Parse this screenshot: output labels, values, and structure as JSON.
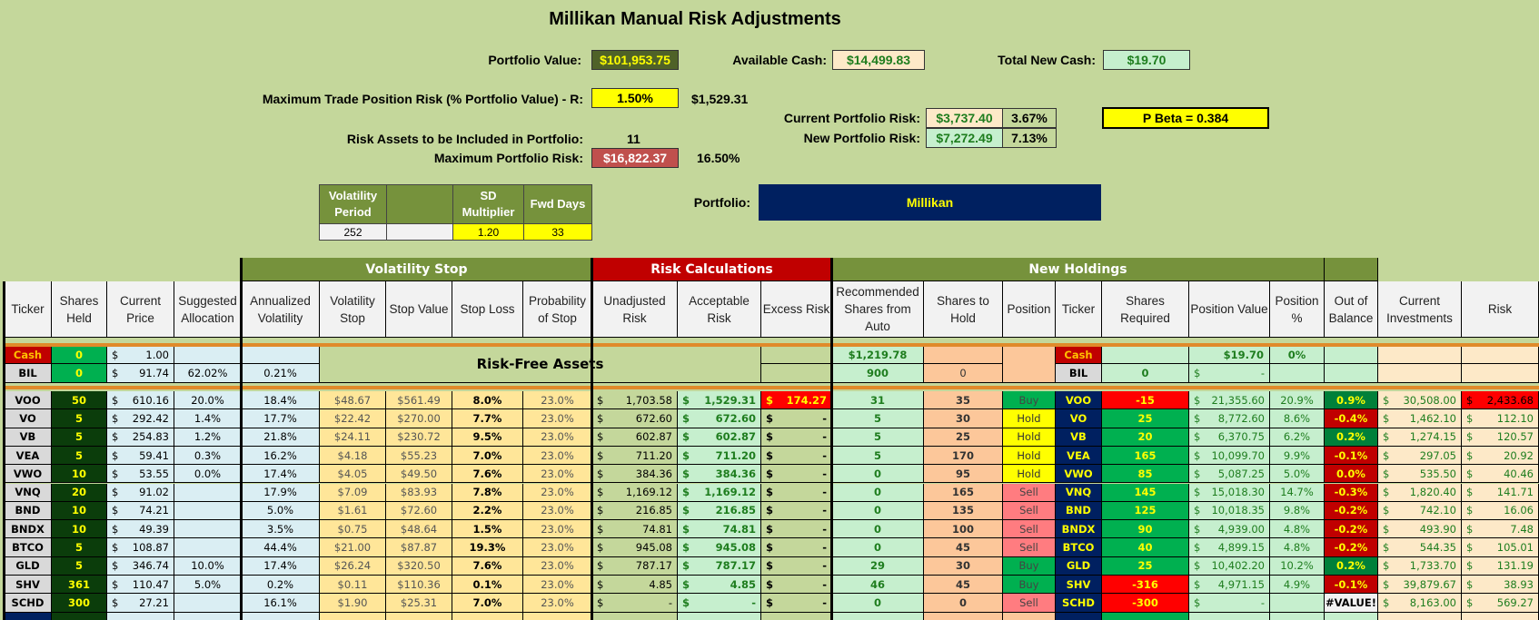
{
  "title": "Millikan Manual Risk Adjustments",
  "summary": {
    "portfolio_value_label": "Portfolio Value:",
    "portfolio_value": "$101,953.75",
    "available_cash_label": "Available Cash:",
    "available_cash": "$14,499.83",
    "total_new_cash_label": "Total New Cash:",
    "total_new_cash": "$19.70",
    "max_trade_risk_label": "Maximum Trade Position Risk (% Portfolio Value) - R:",
    "max_trade_risk_pct": "1.50%",
    "max_trade_risk_amt": "$1,529.31",
    "current_risk_label": "Current Portfolio Risk:",
    "current_risk_amt": "$3,737.40",
    "current_risk_pct": "3.67%",
    "new_risk_label": "New Portfolio Risk:",
    "new_risk_amt": "$7,272.49",
    "new_risk_pct": "7.13%",
    "p_beta": "P Beta = 0.384",
    "risk_assets_label": "Risk Assets to be Included in Portfolio:",
    "risk_assets_count": "11",
    "max_portfolio_risk_label": "Maximum Portfolio Risk:",
    "max_portfolio_risk_amt": "$16,822.37",
    "max_portfolio_risk_pct": "16.50%"
  },
  "settings": {
    "headers": [
      "Volatility Period",
      "",
      "SD Multiplier",
      "Fwd Days"
    ],
    "values": [
      "252",
      "",
      "1.20",
      "33"
    ]
  },
  "portfolio": {
    "label": "Portfolio:",
    "value": "Millikan"
  },
  "bands": {
    "volatility_stop": "Volatility Stop",
    "risk_calculations": "Risk Calculations",
    "new_holdings": "New Holdings"
  },
  "columns": [
    "Ticker",
    "Shares Held",
    "Current Price",
    "Suggested Allocation",
    "Annualized Volatility",
    "Volatility Stop",
    "Stop Value",
    "Stop Loss",
    "Probability of Stop",
    "Unadjusted Risk",
    "Acceptable Risk",
    "Excess Risk",
    "Recommended Shares from Auto",
    "Shares to Hold",
    "Position",
    "Ticker",
    "Shares Required",
    "Position Value",
    "Position %",
    "Out of Balance",
    "Current Investments",
    "Risk"
  ],
  "risk_free_label": "Risk-Free Assets",
  "risk_free_rows": [
    {
      "ticker": "Cash",
      "shares": "0",
      "price": "1.00",
      "alloc": "",
      "vol": "",
      "rec": "$1,219.78",
      "hold": "",
      "ticker2": "Cash",
      "req": "",
      "pos_value": "$19.70",
      "pos_pct": "0%"
    },
    {
      "ticker": "BIL",
      "shares": "0",
      "price": "91.74",
      "alloc": "62.02%",
      "vol": "0.21%",
      "rec": "900",
      "hold": "0",
      "ticker2": "BIL",
      "req": "0",
      "pos_value": "-",
      "pos_pct": ""
    }
  ],
  "rows": [
    {
      "ticker": "VOO",
      "shares": "50",
      "price": "610.16",
      "alloc": "20.0%",
      "vol": "18.4%",
      "vstop": "$48.67",
      "sval": "$561.49",
      "sloss": "8.0%",
      "prob": "23.0%",
      "unadj": "1,703.58",
      "accept": "1,529.31",
      "excess": "174.27",
      "rec": "31",
      "hold": "35",
      "position": "Buy",
      "req": "-15",
      "pos_value": "21,355.60",
      "pos_pct": "20.9%",
      "oob": "0.9%",
      "cur_inv": "30,508.00",
      "risk": "2,433.68"
    },
    {
      "ticker": "VO",
      "shares": "5",
      "price": "292.42",
      "alloc": "1.4%",
      "vol": "17.7%",
      "vstop": "$22.42",
      "sval": "$270.00",
      "sloss": "7.7%",
      "prob": "23.0%",
      "unadj": "672.60",
      "accept": "672.60",
      "excess": "-",
      "rec": "5",
      "hold": "30",
      "position": "Hold",
      "req": "25",
      "pos_value": "8,772.60",
      "pos_pct": "8.6%",
      "oob": "-0.4%",
      "cur_inv": "1,462.10",
      "risk": "112.10"
    },
    {
      "ticker": "VB",
      "shares": "5",
      "price": "254.83",
      "alloc": "1.2%",
      "vol": "21.8%",
      "vstop": "$24.11",
      "sval": "$230.72",
      "sloss": "9.5%",
      "prob": "23.0%",
      "unadj": "602.87",
      "accept": "602.87",
      "excess": "-",
      "rec": "5",
      "hold": "25",
      "position": "Hold",
      "req": "20",
      "pos_value": "6,370.75",
      "pos_pct": "6.2%",
      "oob": "0.2%",
      "cur_inv": "1,274.15",
      "risk": "120.57"
    },
    {
      "ticker": "VEA",
      "shares": "5",
      "price": "59.41",
      "alloc": "0.3%",
      "vol": "16.2%",
      "vstop": "$4.18",
      "sval": "$55.23",
      "sloss": "7.0%",
      "prob": "23.0%",
      "unadj": "711.20",
      "accept": "711.20",
      "excess": "-",
      "rec": "5",
      "hold": "170",
      "position": "Hold",
      "req": "165",
      "pos_value": "10,099.70",
      "pos_pct": "9.9%",
      "oob": "-0.1%",
      "cur_inv": "297.05",
      "risk": "20.92"
    },
    {
      "ticker": "VWO",
      "shares": "10",
      "price": "53.55",
      "alloc": "0.0%",
      "vol": "17.4%",
      "vstop": "$4.05",
      "sval": "$49.50",
      "sloss": "7.6%",
      "prob": "23.0%",
      "unadj": "384.36",
      "accept": "384.36",
      "excess": "-",
      "rec": "0",
      "hold": "95",
      "position": "Hold",
      "req": "85",
      "pos_value": "5,087.25",
      "pos_pct": "5.0%",
      "oob": "0.0%",
      "cur_inv": "535.50",
      "risk": "40.46"
    },
    {
      "ticker": "VNQ",
      "shares": "20",
      "price": "91.02",
      "alloc": "",
      "vol": "17.9%",
      "vstop": "$7.09",
      "sval": "$83.93",
      "sloss": "7.8%",
      "prob": "23.0%",
      "unadj": "1,169.12",
      "accept": "1,169.12",
      "excess": "-",
      "rec": "0",
      "hold": "165",
      "position": "Sell",
      "req": "145",
      "pos_value": "15,018.30",
      "pos_pct": "14.7%",
      "oob": "-0.3%",
      "cur_inv": "1,820.40",
      "risk": "141.71"
    },
    {
      "ticker": "BND",
      "shares": "10",
      "price": "74.21",
      "alloc": "",
      "vol": "5.0%",
      "vstop": "$1.61",
      "sval": "$72.60",
      "sloss": "2.2%",
      "prob": "23.0%",
      "unadj": "216.85",
      "accept": "216.85",
      "excess": "-",
      "rec": "0",
      "hold": "135",
      "position": "Sell",
      "req": "125",
      "pos_value": "10,018.35",
      "pos_pct": "9.8%",
      "oob": "-0.2%",
      "cur_inv": "742.10",
      "risk": "16.06"
    },
    {
      "ticker": "BNDX",
      "shares": "10",
      "price": "49.39",
      "alloc": "",
      "vol": "3.5%",
      "vstop": "$0.75",
      "sval": "$48.64",
      "sloss": "1.5%",
      "prob": "23.0%",
      "unadj": "74.81",
      "accept": "74.81",
      "excess": "-",
      "rec": "0",
      "hold": "100",
      "position": "Sell",
      "req": "90",
      "pos_value": "4,939.00",
      "pos_pct": "4.8%",
      "oob": "-0.2%",
      "cur_inv": "493.90",
      "risk": "7.48"
    },
    {
      "ticker": "BTCO",
      "shares": "5",
      "price": "108.87",
      "alloc": "",
      "vol": "44.4%",
      "vstop": "$21.00",
      "sval": "$87.87",
      "sloss": "19.3%",
      "prob": "23.0%",
      "unadj": "945.08",
      "accept": "945.08",
      "excess": "-",
      "rec": "0",
      "hold": "45",
      "position": "Sell",
      "req": "40",
      "pos_value": "4,899.15",
      "pos_pct": "4.8%",
      "oob": "-0.2%",
      "cur_inv": "544.35",
      "risk": "105.01"
    },
    {
      "ticker": "GLD",
      "shares": "5",
      "price": "346.74",
      "alloc": "10.0%",
      "vol": "17.4%",
      "vstop": "$26.24",
      "sval": "$320.50",
      "sloss": "7.6%",
      "prob": "23.0%",
      "unadj": "787.17",
      "accept": "787.17",
      "excess": "-",
      "rec": "29",
      "hold": "30",
      "position": "Buy",
      "req": "25",
      "pos_value": "10,402.20",
      "pos_pct": "10.2%",
      "oob": "0.2%",
      "cur_inv": "1,733.70",
      "risk": "131.19"
    },
    {
      "ticker": "SHV",
      "shares": "361",
      "price": "110.47",
      "alloc": "5.0%",
      "vol": "0.2%",
      "vstop": "$0.11",
      "sval": "$110.36",
      "sloss": "0.1%",
      "prob": "23.0%",
      "unadj": "4.85",
      "accept": "4.85",
      "excess": "-",
      "rec": "46",
      "hold": "45",
      "position": "Buy",
      "req": "-316",
      "pos_value": "4,971.15",
      "pos_pct": "4.9%",
      "oob": "-0.1%",
      "cur_inv": "39,879.67",
      "risk": "38.93"
    },
    {
      "ticker": "SCHD",
      "shares": "300",
      "price": "27.21",
      "alloc": "",
      "vol": "16.1%",
      "vstop": "$1.90",
      "sval": "$25.31",
      "sloss": "7.0%",
      "prob": "23.0%",
      "unadj": "-",
      "accept": "-",
      "excess": "-",
      "rec": "0",
      "hold": "0",
      "position": "Sell",
      "req": "-300",
      "pos_value": "-",
      "pos_pct": "",
      "oob": "#VALUE!",
      "cur_inv": "8,163.00",
      "risk": "569.27"
    }
  ],
  "colors": {
    "background": "#c4d79b",
    "band_green": "#76923c",
    "band_red": "#c00000",
    "navy": "#002060",
    "yellow": "#ffff00",
    "buy": "#00b050",
    "sell": "#ff7c80",
    "hold": "#ffff00"
  }
}
